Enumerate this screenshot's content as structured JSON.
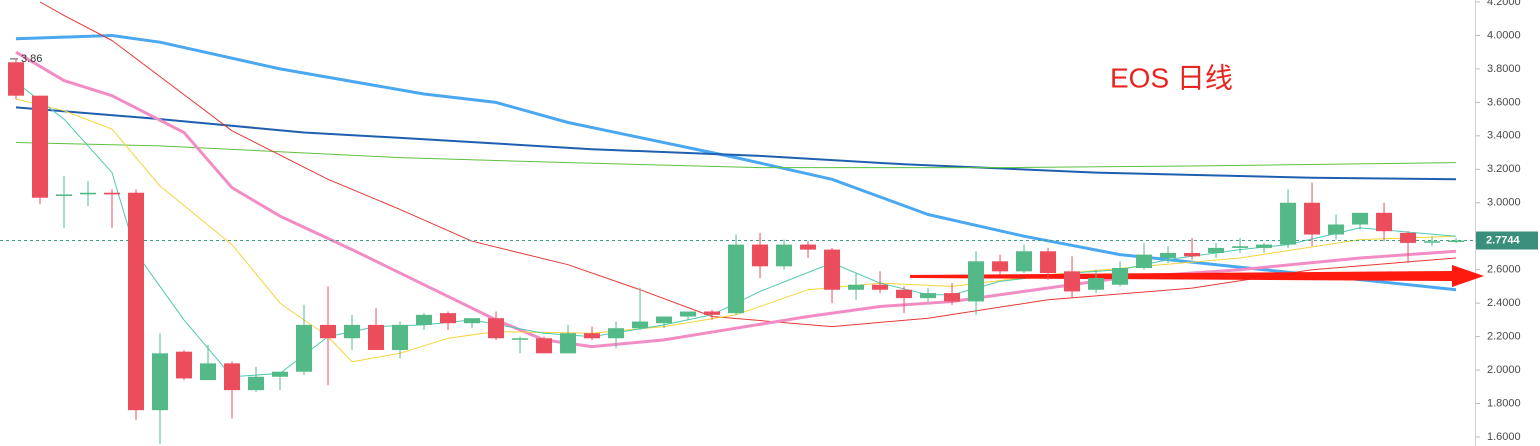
{
  "chart_data": {
    "type": "candlestick",
    "title": "EOS 日线",
    "up_color": "#53b987",
    "down_color": "#eb4d5c",
    "x": [
      0,
      1,
      2,
      3,
      4,
      5,
      6,
      7,
      8,
      9,
      10,
      11,
      12,
      13,
      14,
      15,
      16,
      17,
      18,
      19,
      20,
      21,
      22,
      23,
      24,
      25,
      26,
      27,
      28,
      29,
      30,
      31,
      32,
      33,
      34,
      35,
      36,
      37,
      38,
      39,
      40,
      41,
      42,
      43,
      44,
      45,
      46,
      47,
      48,
      49,
      50,
      51,
      52,
      53,
      54,
      55,
      56,
      57,
      58,
      59,
      60
    ],
    "open": [
      3.84,
      3.64,
      3.04,
      3.05,
      3.06,
      3.06,
      1.76,
      2.11,
      1.94,
      2.04,
      1.88,
      1.96,
      1.99,
      2.27,
      2.19,
      2.27,
      2.12,
      2.27,
      2.34,
      2.28,
      2.31,
      2.19,
      2.19,
      2.1,
      2.22,
      2.19,
      2.25,
      2.28,
      2.32,
      2.35,
      2.34,
      2.75,
      2.62,
      2.75,
      2.72,
      2.48,
      2.51,
      2.48,
      2.43,
      2.46,
      2.41,
      2.65,
      2.59,
      2.71,
      2.59,
      2.48,
      2.51,
      2.61,
      2.67,
      2.7,
      2.7,
      2.73,
      2.73,
      2.75,
      3.0,
      2.81,
      2.87,
      2.94,
      2.82,
      2.77,
      2.77
    ],
    "high": [
      3.86,
      3.64,
      3.16,
      3.13,
      3.08,
      3.08,
      2.22,
      2.12,
      2.15,
      2.05,
      2.02,
      1.99,
      2.39,
      2.5,
      2.33,
      2.37,
      2.29,
      2.34,
      2.35,
      2.31,
      2.35,
      2.2,
      2.2,
      2.27,
      2.26,
      2.29,
      2.49,
      2.32,
      2.35,
      2.36,
      2.81,
      2.82,
      2.78,
      2.77,
      2.73,
      2.58,
      2.59,
      2.5,
      2.49,
      2.52,
      2.71,
      2.69,
      2.75,
      2.73,
      2.68,
      2.6,
      2.65,
      2.76,
      2.74,
      2.79,
      2.76,
      2.79,
      2.76,
      3.08,
      3.12,
      2.93,
      2.94,
      3.0,
      2.83,
      2.8,
      2.79
    ],
    "low": [
      3.62,
      2.99,
      2.85,
      2.98,
      2.85,
      1.7,
      1.56,
      1.94,
      1.94,
      1.71,
      1.87,
      1.88,
      1.97,
      1.91,
      2.12,
      2.12,
      2.07,
      2.24,
      2.24,
      2.25,
      2.18,
      2.1,
      2.1,
      2.1,
      2.18,
      2.13,
      2.24,
      2.25,
      2.3,
      2.3,
      2.33,
      2.55,
      2.6,
      2.67,
      2.4,
      2.42,
      2.46,
      2.34,
      2.41,
      2.39,
      2.33,
      2.57,
      2.58,
      2.54,
      2.43,
      2.46,
      2.5,
      2.6,
      2.64,
      2.66,
      2.67,
      2.7,
      2.7,
      2.73,
      2.74,
      2.78,
      2.84,
      2.77,
      2.64,
      2.74,
      2.76
    ],
    "close": [
      3.64,
      3.03,
      3.05,
      3.06,
      3.05,
      1.76,
      2.1,
      1.95,
      2.04,
      1.88,
      1.96,
      1.99,
      2.27,
      2.19,
      2.27,
      2.12,
      2.27,
      2.33,
      2.28,
      2.31,
      2.19,
      2.19,
      2.1,
      2.22,
      2.19,
      2.25,
      2.29,
      2.32,
      2.35,
      2.33,
      2.75,
      2.62,
      2.75,
      2.72,
      2.48,
      2.51,
      2.48,
      2.43,
      2.46,
      2.41,
      2.65,
      2.59,
      2.71,
      2.58,
      2.47,
      2.55,
      2.61,
      2.69,
      2.7,
      2.68,
      2.73,
      2.74,
      2.75,
      3.0,
      2.81,
      2.87,
      2.94,
      2.83,
      2.76,
      2.77,
      2.7744
    ],
    "lines": [
      {
        "color": "#4aa8f0",
        "style": "thick",
        "x": [
          0,
          4,
          6,
          11,
          17,
          20,
          23,
          28,
          30,
          34,
          38,
          42,
          46,
          52,
          60
        ],
        "values": [
          3.98,
          4.0,
          3.96,
          3.8,
          3.65,
          3.6,
          3.48,
          3.33,
          3.27,
          3.14,
          2.93,
          2.8,
          2.69,
          2.6,
          2.48
        ]
      },
      {
        "color": "#1f5fb0",
        "style": "medium",
        "x": [
          0,
          6,
          12,
          17,
          24,
          31,
          37,
          45,
          54,
          60
        ],
        "values": [
          3.57,
          3.5,
          3.42,
          3.38,
          3.32,
          3.28,
          3.23,
          3.18,
          3.15,
          3.14
        ]
      },
      {
        "color": "#5cc040",
        "style": "thin",
        "x": [
          0,
          6,
          16,
          23,
          31,
          41,
          49,
          60
        ],
        "values": [
          3.36,
          3.34,
          3.27,
          3.24,
          3.21,
          3.21,
          3.22,
          3.24
        ]
      },
      {
        "color": "#e53935",
        "style": "thin",
        "x": [
          1,
          2,
          4,
          9,
          13,
          16,
          19,
          23,
          26,
          29,
          34,
          38,
          43,
          49,
          54,
          60
        ],
        "values": [
          4.2,
          4.12,
          3.97,
          3.43,
          3.14,
          2.96,
          2.77,
          2.63,
          2.48,
          2.32,
          2.26,
          2.31,
          2.42,
          2.49,
          2.6,
          2.67
        ]
      },
      {
        "color": "#f28cc4",
        "style": "thick",
        "x": [
          0,
          2,
          4,
          7,
          9,
          11,
          14,
          17,
          20,
          22,
          24,
          27,
          30,
          33,
          36,
          39,
          42,
          46,
          51,
          56,
          60
        ],
        "values": [
          3.9,
          3.73,
          3.64,
          3.42,
          3.09,
          2.92,
          2.72,
          2.51,
          2.3,
          2.18,
          2.14,
          2.18,
          2.25,
          2.32,
          2.38,
          2.41,
          2.47,
          2.55,
          2.6,
          2.67,
          2.71
        ]
      },
      {
        "color": "#f5d33b",
        "style": "thin",
        "x": [
          0,
          2,
          4,
          6,
          9,
          11,
          13,
          14,
          16,
          18,
          20,
          24,
          27,
          30,
          33,
          36,
          39,
          43,
          47,
          51,
          56,
          60
        ],
        "values": [
          3.62,
          3.55,
          3.44,
          3.1,
          2.75,
          2.4,
          2.2,
          2.05,
          2.1,
          2.19,
          2.23,
          2.22,
          2.26,
          2.33,
          2.48,
          2.52,
          2.5,
          2.57,
          2.62,
          2.67,
          2.78,
          2.8
        ]
      },
      {
        "color": "#4ec9b0",
        "style": "thin",
        "x": [
          0,
          2,
          4,
          5,
          7,
          9,
          11,
          13,
          15,
          17,
          19,
          22,
          24,
          27,
          29,
          31,
          34,
          36,
          38,
          39,
          41,
          44,
          46,
          48,
          51,
          53,
          56,
          60
        ],
        "values": [
          3.72,
          3.5,
          3.18,
          2.7,
          2.3,
          1.96,
          1.98,
          2.2,
          2.26,
          2.27,
          2.3,
          2.22,
          2.2,
          2.27,
          2.33,
          2.47,
          2.64,
          2.52,
          2.45,
          2.45,
          2.53,
          2.58,
          2.6,
          2.66,
          2.72,
          2.75,
          2.85,
          2.8
        ]
      }
    ],
    "high_label": 3.86,
    "last_price": {
      "value": 2.7744,
      "label": "2.7744"
    },
    "xlim": [
      -0.667,
      60.79
    ],
    "ylim": [
      1.546,
      4.212
    ],
    "yticks": [
      {
        "value": 4.2,
        "label": "4.2000"
      },
      {
        "value": 4.0,
        "label": "4.0000"
      },
      {
        "value": 3.8,
        "label": "3.8000"
      },
      {
        "value": 3.6,
        "label": "3.6000"
      },
      {
        "value": 3.4,
        "label": "3.4000"
      },
      {
        "value": 3.2,
        "label": "3.2000"
      },
      {
        "value": 3.0,
        "label": "3.0000"
      },
      {
        "value": 2.8,
        "label": "2.8000"
      },
      {
        "value": 2.6,
        "label": "2.6000"
      },
      {
        "value": 2.4,
        "label": "2.4000"
      },
      {
        "value": 2.2,
        "label": "2.2000"
      },
      {
        "value": 2.0,
        "label": "2.0000"
      },
      {
        "value": 1.8,
        "label": "1.8000"
      },
      {
        "value": 1.6,
        "label": "1.6000"
      }
    ]
  }
}
